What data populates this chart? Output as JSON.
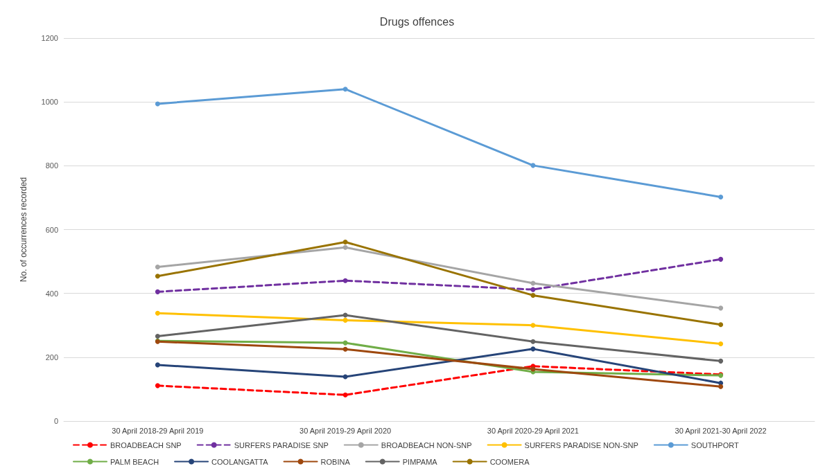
{
  "chart_data": {
    "type": "line",
    "title": "Drugs offences",
    "ylabel": "No. of occurrences recorded",
    "categories": [
      "30 April 2018-29 April 2019",
      "30 April 2019-29 April 2020",
      "30 April 2020-29 April 2021",
      "30 April 2021-30 April 2022"
    ],
    "ylim": [
      0,
      1200
    ],
    "yticks": [
      0,
      200,
      400,
      600,
      800,
      1000,
      1200
    ],
    "grid": "y",
    "legend": "bottom",
    "marker": "circle",
    "line_style": "solid",
    "series": [
      {
        "name": "BROADBEACH SNP",
        "color": "#ff0000",
        "line_style": "dashed",
        "values": [
          111,
          82,
          172,
          146
        ]
      },
      {
        "name": "SURFERS PARADISE SNP",
        "color": "#7030a0",
        "line_style": "dashed",
        "values": [
          405,
          440,
          412,
          507
        ]
      },
      {
        "name": "BROADBEACH NON-SNP",
        "color": "#a5a5a5",
        "values": [
          483,
          544,
          432,
          354
        ]
      },
      {
        "name": "SURFERS PARADISE NON-SNP",
        "color": "#ffc000",
        "values": [
          338,
          316,
          300,
          242
        ]
      },
      {
        "name": "SOUTHPORT",
        "color": "#5b9bd5",
        "values": [
          994,
          1040,
          801,
          702
        ]
      },
      {
        "name": "PALM BEACH",
        "color": "#70ad47",
        "values": [
          251,
          245,
          154,
          143
        ]
      },
      {
        "name": "COOLANGATTA",
        "color": "#264478",
        "values": [
          176,
          139,
          226,
          119
        ]
      },
      {
        "name": "ROBINA",
        "color": "#9e480e",
        "values": [
          249,
          225,
          163,
          108
        ]
      },
      {
        "name": "PIMPAMA",
        "color": "#636363",
        "values": [
          266,
          332,
          249,
          188
        ]
      },
      {
        "name": "COOMERA",
        "color": "#997300",
        "values": [
          454,
          561,
          394,
          302
        ]
      }
    ]
  }
}
